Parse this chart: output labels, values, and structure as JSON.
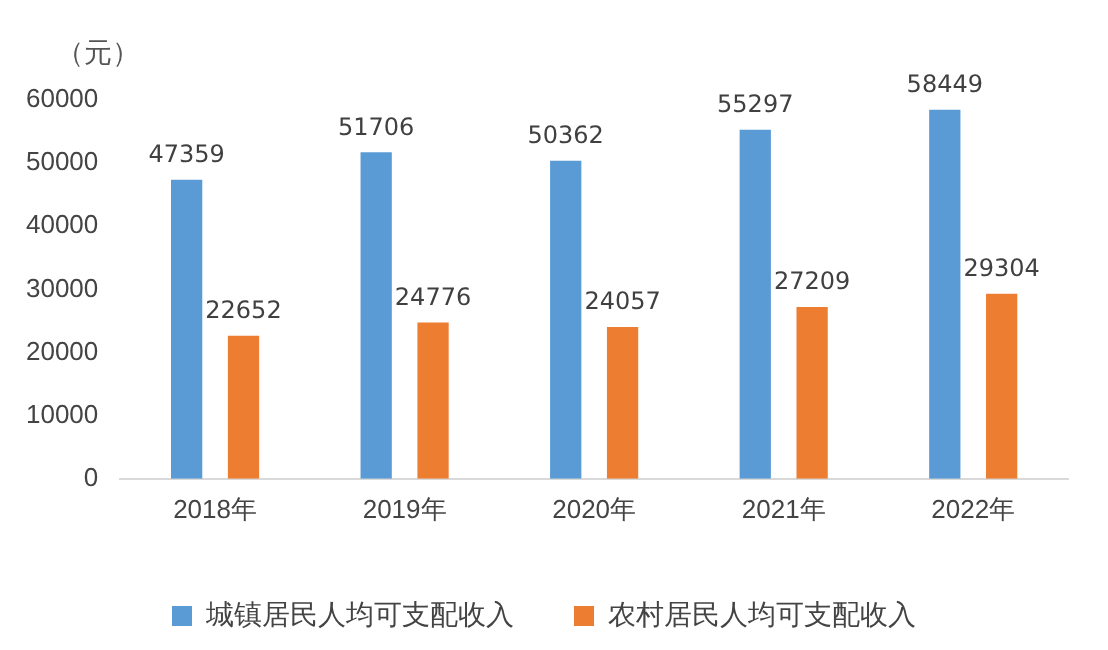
{
  "chart_data": {
    "type": "bar",
    "ylabel": "（元）",
    "categories": [
      "2018年",
      "2019年",
      "2020年",
      "2021年",
      "2022年"
    ],
    "series": [
      {
        "name": "城镇居民人均可支配收入",
        "color": "#5b9bd5",
        "values": [
          47359,
          51706,
          50362,
          55297,
          58449
        ]
      },
      {
        "name": "农村居民人均可支配收入",
        "color": "#ed7d31",
        "values": [
          22652,
          24776,
          24057,
          27209,
          29304
        ]
      }
    ],
    "ylim": [
      0,
      60000
    ],
    "yticks": [
      0,
      10000,
      20000,
      30000,
      40000,
      50000,
      60000
    ],
    "data_labels": true,
    "grid": false,
    "legend": "bottom"
  }
}
